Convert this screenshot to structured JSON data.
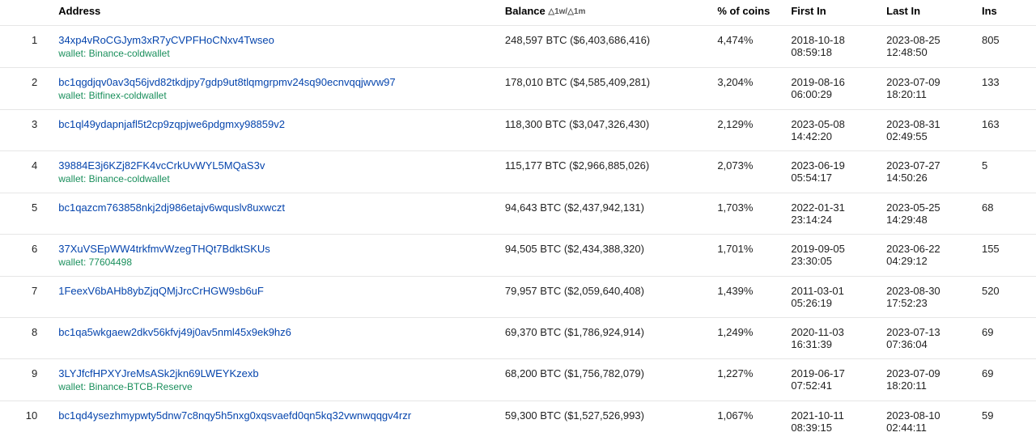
{
  "columns": {
    "rank": "",
    "address": "Address",
    "balance": "Balance",
    "balance_suffix": "△1w/△1m",
    "pct": "% of coins",
    "first_in": "First In",
    "last_in": "Last In",
    "ins": "Ins"
  },
  "link_color": "#0645ad",
  "wallet_color": "#1a8f5c",
  "border_color": "#e6e6e6",
  "rows": [
    {
      "rank": "1",
      "address": "34xp4vRoCGJym3xR7yCVPFHoCNxv4Twseo",
      "wallet": "wallet: Binance-coldwallet",
      "balance": "248,597 BTC ($6,403,686,416)",
      "pct": "4,474%",
      "first_date": "2018-10-18",
      "first_time": "08:59:18",
      "last_date": "2023-08-25",
      "last_time": "12:48:50",
      "ins": "805"
    },
    {
      "rank": "2",
      "address": "bc1qgdjqv0av3q56jvd82tkdjpy7gdp9ut8tlqmgrpmv24sq90ecnvqqjwvw97",
      "wallet": "wallet: Bitfinex-coldwallet",
      "balance": "178,010 BTC ($4,585,409,281)",
      "pct": "3,204%",
      "first_date": "2019-08-16",
      "first_time": "06:00:29",
      "last_date": "2023-07-09",
      "last_time": "18:20:11",
      "ins": "133"
    },
    {
      "rank": "3",
      "address": "bc1ql49ydapnjafl5t2cp9zqpjwe6pdgmxy98859v2",
      "wallet": "",
      "balance": "118,300 BTC ($3,047,326,430)",
      "pct": "2,129%",
      "first_date": "2023-05-08",
      "first_time": "14:42:20",
      "last_date": "2023-08-31",
      "last_time": "02:49:55",
      "ins": "163"
    },
    {
      "rank": "4",
      "address": "39884E3j6KZj82FK4vcCrkUvWYL5MQaS3v",
      "wallet": "wallet: Binance-coldwallet",
      "balance": "115,177 BTC ($2,966,885,026)",
      "pct": "2,073%",
      "first_date": "2023-06-19",
      "first_time": "05:54:17",
      "last_date": "2023-07-27",
      "last_time": "14:50:26",
      "ins": "5"
    },
    {
      "rank": "5",
      "address": "bc1qazcm763858nkj2dj986etajv6wquslv8uxwczt",
      "wallet": "",
      "balance": "94,643 BTC ($2,437,942,131)",
      "pct": "1,703%",
      "first_date": "2022-01-31",
      "first_time": "23:14:24",
      "last_date": "2023-05-25",
      "last_time": "14:29:48",
      "ins": "68"
    },
    {
      "rank": "6",
      "address": "37XuVSEpWW4trkfmvWzegTHQt7BdktSKUs",
      "wallet": "wallet: 77604498",
      "balance": "94,505 BTC ($2,434,388,320)",
      "pct": "1,701%",
      "first_date": "2019-09-05",
      "first_time": "23:30:05",
      "last_date": "2023-06-22",
      "last_time": "04:29:12",
      "ins": "155"
    },
    {
      "rank": "7",
      "address": "1FeexV6bAHb8ybZjqQMjJrcCrHGW9sb6uF",
      "wallet": "",
      "balance": "79,957 BTC ($2,059,640,408)",
      "pct": "1,439%",
      "first_date": "2011-03-01",
      "first_time": "05:26:19",
      "last_date": "2023-08-30",
      "last_time": "17:52:23",
      "ins": "520"
    },
    {
      "rank": "8",
      "address": "bc1qa5wkgaew2dkv56kfvj49j0av5nml45x9ek9hz6",
      "wallet": "",
      "balance": "69,370 BTC ($1,786,924,914)",
      "pct": "1,249%",
      "first_date": "2020-11-03",
      "first_time": "16:31:39",
      "last_date": "2023-07-13",
      "last_time": "07:36:04",
      "ins": "69"
    },
    {
      "rank": "9",
      "address": "3LYJfcfHPXYJreMsASk2jkn69LWEYKzexb",
      "wallet": "wallet: Binance-BTCB-Reserve",
      "balance": "68,200 BTC ($1,756,782,079)",
      "pct": "1,227%",
      "first_date": "2019-06-17",
      "first_time": "07:52:41",
      "last_date": "2023-07-09",
      "last_time": "18:20:11",
      "ins": "69"
    },
    {
      "rank": "10",
      "address": "bc1qd4ysezhmypwty5dnw7c8nqy5h5nxg0xqsvaefd0qn5kq32vwnwqqgv4rzr",
      "wallet": "",
      "balance": "59,300 BTC ($1,527,526,993)",
      "pct": "1,067%",
      "first_date": "2021-10-11",
      "first_time": "08:39:15",
      "last_date": "2023-08-10",
      "last_time": "02:44:11",
      "ins": "59"
    }
  ]
}
